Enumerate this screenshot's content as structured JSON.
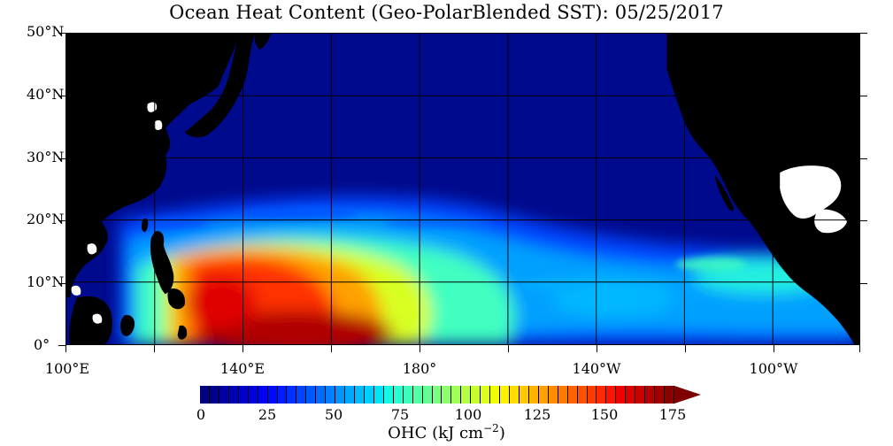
{
  "title": "Ocean Heat Content (Geo-PolarBlended SST): 05/25/2017",
  "latitude_labels": [
    "50°N",
    "40°N",
    "30°N",
    "20°N",
    "10°N",
    "0°"
  ],
  "longitude_labels": [
    "100°E",
    "140°E",
    "180°",
    "140°W",
    "100°W"
  ],
  "colorbar": {
    "tick_labels": [
      "0",
      "25",
      "50",
      "75",
      "100",
      "125",
      "150",
      "175"
    ],
    "title": "OHC (kJ cm",
    "title_exponent": "−2",
    "title_suffix": ")",
    "colors": [
      "#00007f",
      "#00008f",
      "#0000a3",
      "#0000b7",
      "#0000cb",
      "#0000df",
      "#0000f3",
      "#0008ff",
      "#001cff",
      "#0030ff",
      "#0044ff",
      "#0058ff",
      "#006cff",
      "#0080ff",
      "#0094ff",
      "#00a8ff",
      "#00bcff",
      "#00d0ff",
      "#00e4f8",
      "#14f8e4",
      "#28ffd0",
      "#3cffbc",
      "#50ffa8",
      "#64ff94",
      "#78ff80",
      "#8cff6c",
      "#a0ff58",
      "#b4ff44",
      "#c8ff30",
      "#dcff1c",
      "#f0ff08",
      "#fff000",
      "#ffdc00",
      "#ffc800",
      "#ffb400",
      "#ffa000",
      "#ff8c00",
      "#ff7800",
      "#ff6400",
      "#ff5000",
      "#ff3c00",
      "#ff2800",
      "#ff1400",
      "#f00000",
      "#dc0000",
      "#c80000",
      "#b40000",
      "#a00000",
      "#8c0000"
    ],
    "over_color": "#7f0000"
  },
  "colors": {
    "land": "#000000",
    "ocean_cold": "#000a8c",
    "no_data": "#ffffff"
  }
}
